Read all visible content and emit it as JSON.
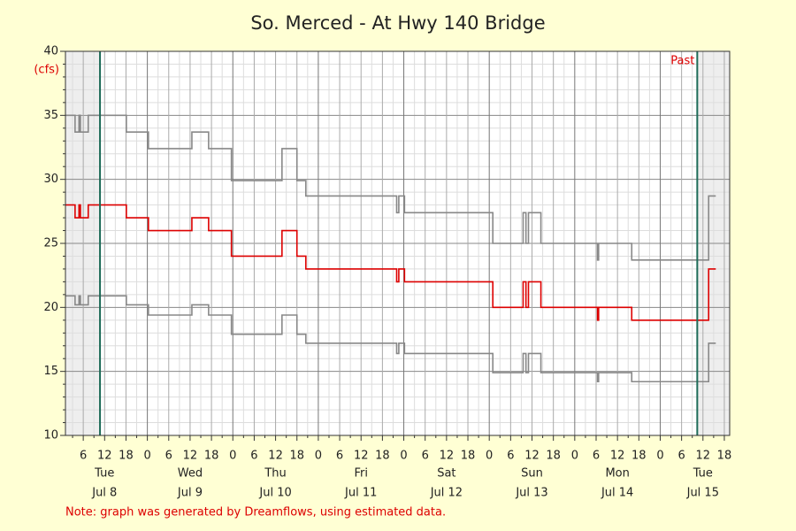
{
  "chart_data": {
    "type": "line",
    "title": "So. Merced - At Hwy 140 Bridge",
    "y_unit": "(cfs)",
    "marker_label": "Past",
    "note": "Note: graph was generated by Dreamflows, using estimated data.",
    "xlim": [
      1,
      187.5
    ],
    "ylim": [
      10,
      40
    ],
    "yticks": [
      10,
      15,
      20,
      25,
      30,
      35,
      40
    ],
    "minor_yticks": [
      11,
      12,
      13,
      14,
      16,
      17,
      18,
      19,
      21,
      22,
      23,
      24,
      26,
      27,
      28,
      29,
      31,
      32,
      33,
      34,
      36,
      37,
      38,
      39
    ],
    "xticks": [
      6,
      12,
      18,
      {
        "value": 24,
        "label": "0"
      },
      {
        "value": 30,
        "label": "6"
      },
      {
        "value": 36,
        "label": "12"
      },
      {
        "value": 42,
        "label": "18"
      },
      {
        "value": 48,
        "label": "0"
      },
      {
        "value": 54,
        "label": "6"
      },
      {
        "value": 60,
        "label": "12"
      },
      {
        "value": 66,
        "label": "18"
      },
      {
        "value": 72,
        "label": "0"
      },
      {
        "value": 78,
        "label": "6"
      },
      {
        "value": 84,
        "label": "12"
      },
      {
        "value": 90,
        "label": "18"
      },
      {
        "value": 96,
        "label": "0"
      },
      {
        "value": 102,
        "label": "6"
      },
      {
        "value": 108,
        "label": "12"
      },
      {
        "value": 114,
        "label": "18"
      },
      {
        "value": 120,
        "label": "0"
      },
      {
        "value": 126,
        "label": "6"
      },
      {
        "value": 132,
        "label": "12"
      },
      {
        "value": 138,
        "label": "18"
      },
      {
        "value": 144,
        "label": "0"
      },
      {
        "value": 150,
        "label": "6"
      },
      {
        "value": 156,
        "label": "12"
      },
      {
        "value": 162,
        "label": "18"
      },
      {
        "value": 168,
        "label": "0"
      },
      {
        "value": 174,
        "label": "6"
      },
      {
        "value": 180,
        "label": "12"
      },
      {
        "value": 186,
        "label": "18"
      }
    ],
    "minor_xticks": [
      3,
      9,
      15,
      21,
      27,
      33,
      39,
      45,
      51,
      57,
      63,
      69,
      75,
      81,
      87,
      93,
      99,
      105,
      111,
      117,
      123,
      129,
      135,
      141,
      147,
      153,
      159,
      165,
      171,
      177,
      183
    ],
    "day_labels": [
      {
        "value": 12,
        "weekday": "Tue",
        "date": "Jul 8"
      },
      {
        "value": 36,
        "weekday": "Wed",
        "date": "Jul 9"
      },
      {
        "value": 60,
        "weekday": "Thu",
        "date": "Jul 10"
      },
      {
        "value": 84,
        "weekday": "Fri",
        "date": "Jul 11"
      },
      {
        "value": 108,
        "weekday": "Sat",
        "date": "Jul 12"
      },
      {
        "value": 132,
        "weekday": "Sun",
        "date": "Jul 13"
      },
      {
        "value": 156,
        "weekday": "Mon",
        "date": "Jul 14"
      },
      {
        "value": 180,
        "weekday": "Tue",
        "date": "Jul 15"
      }
    ],
    "markers": [
      10.7,
      178.4
    ],
    "marker_color": "#1d6b58",
    "grid": true,
    "x": [
      1,
      3.7,
      3.7,
      4.8,
      4.8,
      5.2,
      5.2,
      7.4,
      7.4,
      18.1,
      18.1,
      24.3,
      24.3,
      36.5,
      36.5,
      41.2,
      41.2,
      47.6,
      47.6,
      61.8,
      61.8,
      66,
      66,
      68.5,
      68.5,
      94,
      94,
      94.6,
      94.6,
      96.2,
      96.2,
      121,
      121,
      129.5,
      129.5,
      130.3,
      130.3,
      131,
      131,
      134.5,
      134.5,
      150.4,
      150.4,
      150.7,
      150.7,
      160,
      160,
      181.6,
      181.6,
      183.6
    ],
    "series": [
      {
        "color": "#888888",
        "values": [
          35,
          35,
          33.7,
          33.7,
          35,
          35,
          33.7,
          33.7,
          35,
          35,
          33.7,
          33.7,
          32.4,
          32.4,
          33.7,
          33.7,
          32.4,
          32.4,
          29.9,
          29.9,
          32.4,
          32.4,
          29.9,
          29.9,
          28.7,
          28.7,
          27.4,
          27.4,
          28.7,
          28.7,
          27.4,
          27.4,
          25,
          25,
          27.4,
          27.4,
          25,
          25,
          27.4,
          27.4,
          25,
          25,
          23.7,
          23.7,
          25,
          25,
          23.7,
          23.7,
          28.7,
          28.7
        ]
      },
      {
        "color": "#dd0000",
        "values": [
          28,
          28,
          27,
          27,
          28,
          28,
          27,
          27,
          28,
          28,
          27,
          27,
          26,
          26,
          27,
          27,
          26,
          26,
          24,
          24,
          26,
          26,
          24,
          24,
          23,
          23,
          22,
          22,
          23,
          23,
          22,
          22,
          20,
          20,
          22,
          22,
          20,
          20,
          22,
          22,
          20,
          20,
          19,
          19,
          20,
          20,
          19,
          19,
          23,
          23
        ]
      },
      {
        "color": "#888888",
        "values": [
          20.9,
          20.9,
          20.2,
          20.2,
          20.9,
          20.9,
          20.2,
          20.2,
          20.9,
          20.9,
          20.2,
          20.2,
          19.4,
          19.4,
          20.2,
          20.2,
          19.4,
          19.4,
          17.9,
          17.9,
          19.4,
          19.4,
          17.9,
          17.9,
          17.2,
          17.2,
          16.4,
          16.4,
          17.2,
          17.2,
          16.4,
          16.4,
          14.9,
          14.9,
          16.4,
          16.4,
          14.9,
          14.9,
          16.4,
          16.4,
          14.9,
          14.9,
          14.2,
          14.2,
          14.9,
          14.9,
          14.2,
          14.2,
          17.2,
          17.2
        ]
      }
    ]
  }
}
